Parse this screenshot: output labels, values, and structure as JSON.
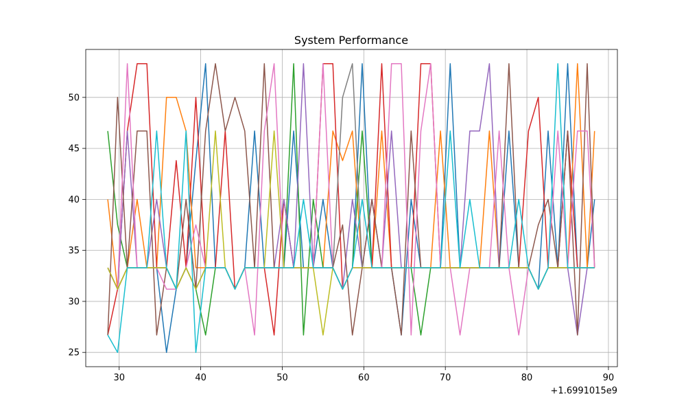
{
  "chart_data": {
    "type": "line",
    "title": "System Performance",
    "xlabel": "",
    "ylabel": "",
    "x_offset_text": "+1.6991015e9",
    "xlim": [
      25.9,
      91.1
    ],
    "ylim": [
      23.6,
      54.7
    ],
    "x_ticks": [
      30,
      40,
      50,
      60,
      70,
      80,
      90
    ],
    "y_ticks": [
      25,
      30,
      35,
      40,
      45,
      50
    ],
    "grid": true,
    "x": [
      28.6,
      29.8,
      31.0,
      32.2,
      33.4,
      34.6,
      35.8,
      37.0,
      38.2,
      39.4,
      40.6,
      41.8,
      43.0,
      44.2,
      45.4,
      46.6,
      47.8,
      49.0,
      50.2,
      51.4,
      52.6,
      53.8,
      55.0,
      56.2,
      57.4,
      58.6,
      59.8,
      61.0,
      62.2,
      63.4,
      64.6,
      65.8,
      67.0,
      68.2,
      69.4,
      70.6,
      71.8,
      73.0,
      74.2,
      75.4,
      76.6,
      77.8,
      79.0,
      80.2,
      81.4,
      82.6,
      83.8,
      85.0,
      86.2,
      87.4,
      88.3
    ],
    "series": [
      {
        "color": "#1f77b4",
        "values": [
          33.3,
          31.2,
          33.3,
          33.3,
          33.3,
          33.3,
          25.0,
          31.2,
          33.3,
          43.8,
          53.3,
          33.3,
          33.3,
          31.2,
          33.3,
          46.7,
          33.3,
          33.3,
          33.3,
          46.7,
          33.3,
          33.3,
          40.0,
          33.3,
          31.2,
          33.3,
          53.3,
          33.3,
          33.3,
          33.3,
          26.7,
          40.0,
          33.3,
          33.3,
          33.3,
          53.3,
          33.3,
          33.3,
          33.3,
          33.3,
          33.3,
          46.7,
          33.3,
          33.3,
          31.2,
          46.7,
          33.3,
          53.3,
          33.3,
          33.3,
          40.0
        ]
      },
      {
        "color": "#ff7f0e",
        "values": [
          40.0,
          31.2,
          33.3,
          40.0,
          33.3,
          33.3,
          50.0,
          50.0,
          46.7,
          33.3,
          33.3,
          33.3,
          33.3,
          31.2,
          33.3,
          33.3,
          33.3,
          33.3,
          33.3,
          33.3,
          33.3,
          33.3,
          33.3,
          46.7,
          43.8,
          46.7,
          33.3,
          33.3,
          46.7,
          33.3,
          33.3,
          33.3,
          33.3,
          33.3,
          46.7,
          33.3,
          33.3,
          33.3,
          33.3,
          46.7,
          33.3,
          33.3,
          33.3,
          33.3,
          31.2,
          33.3,
          33.3,
          33.3,
          53.3,
          33.3,
          46.7
        ]
      },
      {
        "color": "#2ca02c",
        "values": [
          46.7,
          37.5,
          33.3,
          33.3,
          33.3,
          33.3,
          33.3,
          31.2,
          33.3,
          31.2,
          26.7,
          33.3,
          33.3,
          31.2,
          33.3,
          33.3,
          33.3,
          33.3,
          33.3,
          53.3,
          26.7,
          40.0,
          33.3,
          33.3,
          31.2,
          33.3,
          46.7,
          33.3,
          33.3,
          33.3,
          33.3,
          33.3,
          26.7,
          33.3,
          33.3,
          33.3,
          33.3,
          33.3,
          33.3,
          33.3,
          33.3,
          33.3,
          33.3,
          33.3,
          31.2,
          33.3,
          33.3,
          33.3,
          33.3,
          33.3,
          33.3
        ]
      },
      {
        "color": "#d62728",
        "values": [
          26.7,
          31.2,
          46.7,
          53.3,
          53.3,
          33.3,
          33.3,
          43.8,
          33.3,
          50.0,
          33.3,
          33.3,
          46.7,
          31.2,
          33.3,
          33.3,
          33.3,
          26.7,
          40.0,
          33.3,
          33.3,
          33.3,
          53.3,
          53.3,
          31.2,
          33.3,
          33.3,
          33.3,
          53.3,
          33.3,
          33.3,
          33.3,
          53.3,
          53.3,
          33.3,
          33.3,
          33.3,
          33.3,
          33.3,
          33.3,
          33.3,
          33.3,
          33.3,
          46.7,
          50.0,
          33.3,
          33.3,
          46.7,
          33.3,
          33.3,
          33.3
        ]
      },
      {
        "color": "#9467bd",
        "values": [
          33.3,
          31.2,
          46.7,
          33.3,
          33.3,
          40.0,
          33.3,
          31.2,
          33.3,
          31.2,
          33.3,
          33.3,
          33.3,
          31.2,
          33.3,
          33.3,
          33.3,
          33.3,
          40.0,
          33.3,
          53.3,
          33.3,
          33.3,
          33.3,
          31.2,
          40.0,
          33.3,
          40.0,
          33.3,
          46.7,
          33.3,
          33.3,
          33.3,
          33.3,
          33.3,
          33.3,
          33.3,
          46.7,
          46.7,
          53.3,
          33.3,
          33.3,
          33.3,
          33.3,
          31.2,
          33.3,
          33.3,
          33.3,
          26.7,
          33.3,
          33.3
        ]
      },
      {
        "color": "#8c564b",
        "values": [
          26.7,
          50.0,
          33.3,
          46.7,
          46.7,
          26.7,
          33.3,
          31.2,
          40.0,
          31.2,
          46.7,
          53.3,
          46.7,
          50.0,
          46.7,
          33.3,
          53.3,
          33.3,
          33.3,
          33.3,
          33.3,
          33.3,
          33.3,
          33.3,
          37.5,
          26.7,
          33.3,
          40.0,
          33.3,
          33.3,
          26.7,
          46.7,
          33.3,
          33.3,
          33.3,
          33.3,
          33.3,
          33.3,
          33.3,
          33.3,
          33.3,
          53.3,
          33.3,
          33.3,
          37.5,
          40.0,
          33.3,
          46.7,
          26.7,
          53.3,
          33.3
        ]
      },
      {
        "color": "#e377c2",
        "values": [
          33.3,
          31.2,
          53.3,
          33.3,
          33.3,
          33.3,
          31.2,
          31.2,
          33.3,
          37.5,
          33.3,
          33.3,
          33.3,
          31.2,
          33.3,
          26.7,
          46.7,
          53.3,
          33.3,
          33.3,
          33.3,
          33.3,
          53.3,
          33.3,
          31.2,
          33.3,
          33.3,
          33.3,
          33.3,
          53.3,
          53.3,
          26.7,
          46.7,
          53.3,
          33.3,
          33.3,
          26.7,
          33.3,
          33.3,
          33.3,
          46.7,
          33.3,
          26.7,
          33.3,
          31.2,
          33.3,
          46.7,
          33.3,
          46.7,
          46.7,
          33.3
        ]
      },
      {
        "color": "#7f7f7f",
        "values": [
          33.3,
          31.2,
          33.3,
          33.3,
          33.3,
          33.3,
          33.3,
          31.2,
          33.3,
          31.2,
          33.3,
          33.3,
          33.3,
          31.2,
          33.3,
          33.3,
          33.3,
          33.3,
          33.3,
          33.3,
          33.3,
          33.3,
          33.3,
          33.3,
          50.0,
          53.3,
          33.3,
          33.3,
          33.3,
          33.3,
          33.3,
          33.3,
          33.3,
          33.3,
          33.3,
          33.3,
          33.3,
          33.3,
          33.3,
          33.3,
          33.3,
          33.3,
          33.3,
          33.3,
          31.2,
          33.3,
          33.3,
          33.3,
          33.3,
          33.3,
          33.3
        ]
      },
      {
        "color": "#bcbd22",
        "values": [
          33.3,
          31.2,
          33.3,
          33.3,
          33.3,
          33.3,
          33.3,
          31.2,
          33.3,
          31.2,
          33.3,
          46.7,
          33.3,
          31.2,
          33.3,
          33.3,
          33.3,
          46.7,
          33.3,
          33.3,
          33.3,
          33.3,
          26.7,
          33.3,
          31.2,
          33.3,
          33.3,
          33.3,
          33.3,
          33.3,
          33.3,
          33.3,
          33.3,
          33.3,
          33.3,
          33.3,
          33.3,
          33.3,
          33.3,
          33.3,
          33.3,
          33.3,
          33.3,
          33.3,
          31.2,
          33.3,
          33.3,
          33.3,
          33.3,
          33.3,
          33.3
        ]
      },
      {
        "color": "#17becf",
        "values": [
          26.7,
          25.0,
          33.3,
          33.3,
          33.3,
          46.7,
          33.3,
          31.2,
          46.7,
          25.0,
          33.3,
          33.3,
          33.3,
          31.2,
          33.3,
          33.3,
          33.3,
          33.3,
          33.3,
          33.3,
          40.0,
          33.3,
          33.3,
          33.3,
          31.2,
          33.3,
          40.0,
          33.3,
          33.3,
          33.3,
          33.3,
          33.3,
          33.3,
          33.3,
          33.3,
          46.7,
          33.3,
          40.0,
          33.3,
          33.3,
          33.3,
          33.3,
          40.0,
          33.3,
          31.2,
          33.3,
          53.3,
          33.3,
          33.3,
          33.3,
          33.3
        ]
      }
    ]
  }
}
